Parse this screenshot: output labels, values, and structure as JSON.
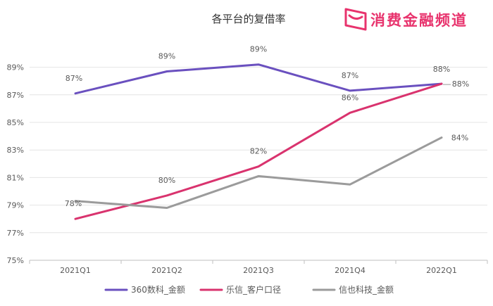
{
  "logo": {
    "text": "消费金融频道"
  },
  "chart_data": {
    "type": "line",
    "title": "各平台的复借率",
    "categories": [
      "2021Q1",
      "2021Q2",
      "2021Q3",
      "2021Q4",
      "2022Q1"
    ],
    "ylim": [
      75,
      90
    ],
    "yticks": [
      75,
      77,
      79,
      81,
      83,
      85,
      87,
      89
    ],
    "ytick_labels": [
      "75%",
      "77%",
      "79%",
      "81%",
      "83%",
      "85%",
      "87%",
      "89%"
    ],
    "grid": "horizontal",
    "legend_position": "bottom",
    "series": [
      {
        "name": "360数科_金额",
        "color": "#6a50bf",
        "values": [
          87.1,
          88.7,
          89.2,
          87.3,
          87.8
        ],
        "labels": [
          "87%",
          "89%",
          "89%",
          "87%",
          "88%"
        ]
      },
      {
        "name": "乐信_客户口径",
        "color": "#d9336e",
        "values": [
          78.0,
          79.7,
          81.8,
          85.7,
          87.8
        ],
        "labels": [
          "78%",
          "80%",
          "82%",
          "86%",
          "88%"
        ]
      },
      {
        "name": "信也科技_金额",
        "color": "#9b9b9b",
        "values": [
          79.3,
          78.8,
          81.1,
          80.5,
          83.9
        ],
        "labels": [
          "",
          "",
          "",
          "",
          "84%"
        ]
      }
    ]
  }
}
